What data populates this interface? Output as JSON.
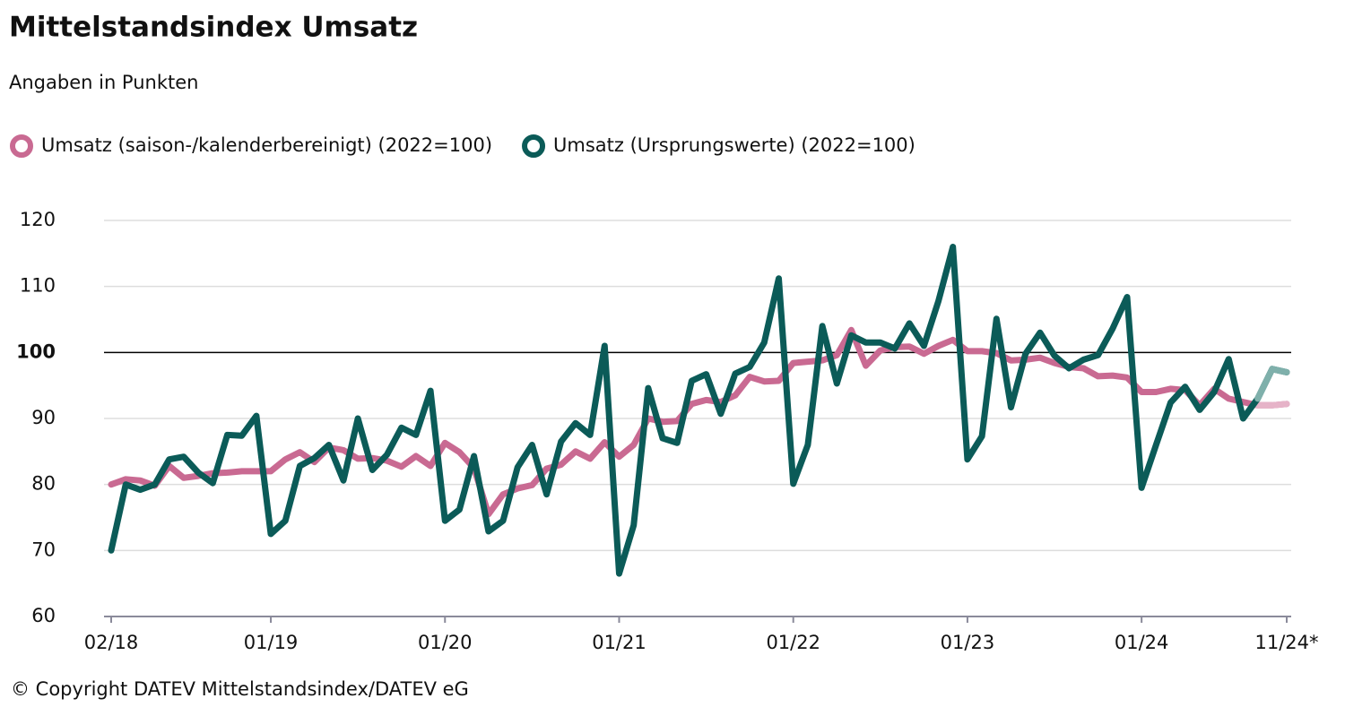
{
  "chart_data": {
    "type": "line",
    "title": "Mittelstandsindex Umsatz",
    "subtitle": "Angaben in Punkten",
    "footer": "© Copyright DATEV Mittelstandsindex/DATEV eG",
    "categories": [
      "02/18",
      null,
      null,
      null,
      null,
      null,
      null,
      null,
      null,
      null,
      null,
      "01/19",
      null,
      null,
      null,
      null,
      null,
      null,
      null,
      null,
      null,
      null,
      null,
      "01/20",
      null,
      null,
      null,
      null,
      null,
      null,
      null,
      null,
      null,
      null,
      null,
      "01/21",
      null,
      null,
      null,
      null,
      null,
      null,
      null,
      null,
      null,
      null,
      null,
      "01/22",
      null,
      null,
      null,
      null,
      null,
      null,
      null,
      null,
      null,
      null,
      null,
      "01/23",
      null,
      null,
      null,
      null,
      null,
      null,
      null,
      null,
      null,
      null,
      null,
      "01/24",
      null,
      null,
      null,
      null,
      null,
      null,
      null,
      null,
      null,
      "11/24*"
    ],
    "series": [
      {
        "name": "Umsatz (saison-/kalenderbereinigt) (2022=100)",
        "color": "#c96a92",
        "faded_color": "#e6b3c8",
        "values": [
          80,
          80.8,
          80.6,
          79.8,
          82.8,
          81,
          81.3,
          81.7,
          81.8,
          82,
          82,
          82,
          83.8,
          84.9,
          83.4,
          85.6,
          85.2,
          83.9,
          84,
          83.6,
          82.7,
          84.3,
          82.8,
          86.3,
          84.9,
          82.5,
          75.5,
          78.5,
          79.4,
          79.9,
          82.4,
          83,
          85,
          83.9,
          86.4,
          84.2,
          86,
          90,
          89.5,
          89.6,
          92.2,
          92.8,
          92.5,
          93.5,
          96.3,
          95.6,
          95.7,
          98.4,
          98.6,
          98.8,
          99.6,
          103.4,
          98,
          100.3,
          100.8,
          100.9,
          99.8,
          101,
          101.9,
          100.2,
          100.2,
          99.9,
          98.8,
          98.9,
          99.2,
          98.4,
          97.8,
          97.6,
          96.4,
          96.5,
          96.2,
          94,
          94,
          94.5,
          94.3,
          92,
          94.5,
          93,
          92.5,
          92,
          92,
          92.2
        ]
      },
      {
        "name": "Umsatz (Ursprungswerte) (2022=100)",
        "color": "#0b5b58",
        "faded_color": "#7fb0ab",
        "values": [
          70,
          80,
          79.2,
          80,
          83.8,
          84.2,
          81.8,
          80.2,
          87.5,
          87.4,
          90.4,
          72.5,
          74.5,
          82.8,
          84,
          86,
          80.6,
          90,
          82.2,
          84.5,
          88.6,
          87.5,
          94.2,
          74.5,
          76.2,
          84.3,
          72.9,
          74.5,
          82.6,
          86,
          78.5,
          86.5,
          89.3,
          87.5,
          101,
          66.5,
          73.8,
          94.6,
          87,
          86.3,
          95.7,
          96.7,
          90.7,
          96.8,
          97.8,
          101.5,
          111.2,
          80.1,
          86,
          104,
          95.3,
          102.6,
          101.5,
          101.5,
          100.6,
          104.4,
          101,
          107.8,
          116,
          83.8,
          87.3,
          105.1,
          91.7,
          99.8,
          103,
          99.5,
          97.6,
          98.9,
          99.6,
          103.6,
          108.4,
          79.5,
          86,
          92.4,
          94.8,
          91.3,
          94,
          99,
          90,
          93,
          97.5,
          97
        ]
      }
    ],
    "faded_points": 2,
    "reference_line": 100,
    "ylim": [
      60,
      120
    ],
    "yticks": [
      60,
      70,
      80,
      90,
      100,
      110,
      120
    ],
    "grid": true
  }
}
